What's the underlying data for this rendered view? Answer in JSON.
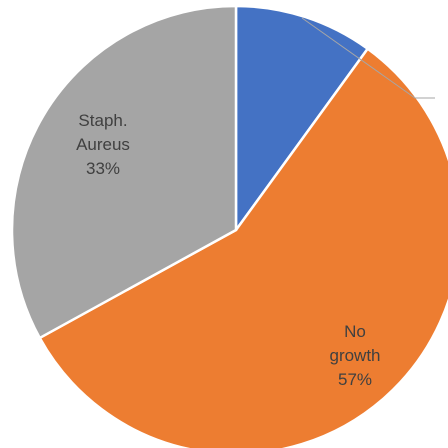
{
  "chart_data": {
    "type": "pie",
    "categories": [
      null,
      "No growth",
      "Staph. Aureus"
    ],
    "values": [
      10,
      57,
      33
    ],
    "value_labels": [
      null,
      "57%",
      "33%"
    ],
    "colors": [
      "#4472c4",
      "#ed7d31",
      "#a5a5a5"
    ]
  }
}
